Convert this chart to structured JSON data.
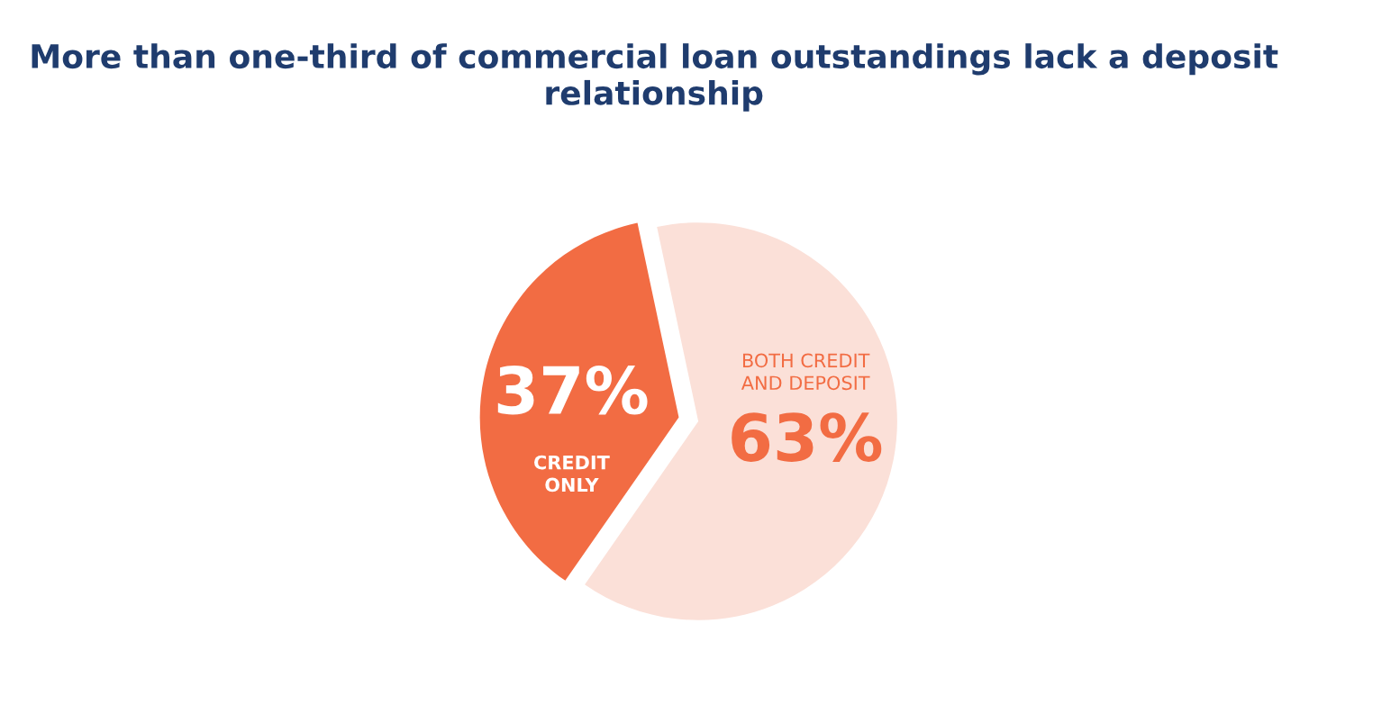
{
  "chart_data": {
    "type": "pie",
    "title": "More than one-third of commercial loan outstandings lack a deposit relationship",
    "categories": [
      "CREDIT\nONLY",
      "BOTH CREDIT\nAND DEPOSIT"
    ],
    "values": [
      37,
      63
    ],
    "colors": [
      "#f26c43",
      "#fbe0d8"
    ],
    "value_labels": [
      "37%",
      "63%"
    ],
    "legend": false
  }
}
